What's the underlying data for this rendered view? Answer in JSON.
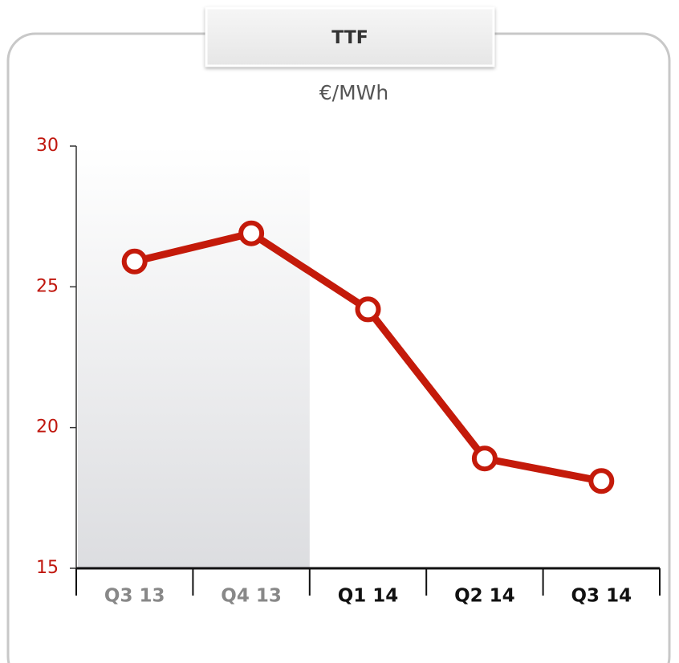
{
  "chart_data": {
    "type": "line",
    "title": "TTF",
    "subtitle": "€/MWh",
    "categories": [
      "Q3 13",
      "Q4 13",
      "Q1 14",
      "Q2 14",
      "Q3 14"
    ],
    "series": [
      {
        "name": "TTF",
        "color": "#c41a0a",
        "values": [
          25.9,
          26.9,
          24.2,
          18.9,
          18.1
        ]
      }
    ],
    "ylim": [
      15,
      30
    ],
    "yticks": [
      15,
      20,
      25,
      30
    ],
    "shaded_categories": 2
  }
}
